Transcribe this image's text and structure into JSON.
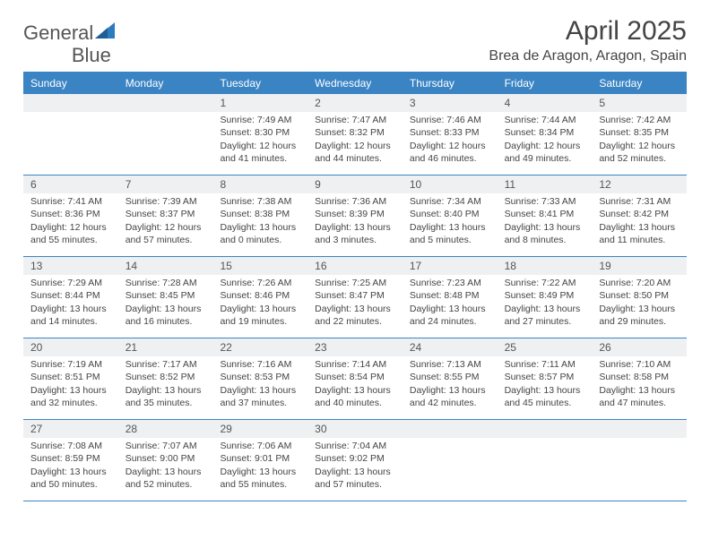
{
  "logo": {
    "text1": "General",
    "text2": "Blue"
  },
  "title": "April 2025",
  "location": "Brea de Aragon, Aragon, Spain",
  "colors": {
    "header_bg": "#3b84c4",
    "header_text": "#ffffff",
    "daynum_bg": "#eef0f1",
    "border": "#3b84c4",
    "body_text": "#444444",
    "logo_blue": "#2b7bbf",
    "logo_gray": "#555555"
  },
  "day_names": [
    "Sunday",
    "Monday",
    "Tuesday",
    "Wednesday",
    "Thursday",
    "Friday",
    "Saturday"
  ],
  "first_weekday": 2,
  "days": [
    {
      "n": 1,
      "sunrise": "7:49 AM",
      "sunset": "8:30 PM",
      "daylight": "12 hours and 41 minutes."
    },
    {
      "n": 2,
      "sunrise": "7:47 AM",
      "sunset": "8:32 PM",
      "daylight": "12 hours and 44 minutes."
    },
    {
      "n": 3,
      "sunrise": "7:46 AM",
      "sunset": "8:33 PM",
      "daylight": "12 hours and 46 minutes."
    },
    {
      "n": 4,
      "sunrise": "7:44 AM",
      "sunset": "8:34 PM",
      "daylight": "12 hours and 49 minutes."
    },
    {
      "n": 5,
      "sunrise": "7:42 AM",
      "sunset": "8:35 PM",
      "daylight": "12 hours and 52 minutes."
    },
    {
      "n": 6,
      "sunrise": "7:41 AM",
      "sunset": "8:36 PM",
      "daylight": "12 hours and 55 minutes."
    },
    {
      "n": 7,
      "sunrise": "7:39 AM",
      "sunset": "8:37 PM",
      "daylight": "12 hours and 57 minutes."
    },
    {
      "n": 8,
      "sunrise": "7:38 AM",
      "sunset": "8:38 PM",
      "daylight": "13 hours and 0 minutes."
    },
    {
      "n": 9,
      "sunrise": "7:36 AM",
      "sunset": "8:39 PM",
      "daylight": "13 hours and 3 minutes."
    },
    {
      "n": 10,
      "sunrise": "7:34 AM",
      "sunset": "8:40 PM",
      "daylight": "13 hours and 5 minutes."
    },
    {
      "n": 11,
      "sunrise": "7:33 AM",
      "sunset": "8:41 PM",
      "daylight": "13 hours and 8 minutes."
    },
    {
      "n": 12,
      "sunrise": "7:31 AM",
      "sunset": "8:42 PM",
      "daylight": "13 hours and 11 minutes."
    },
    {
      "n": 13,
      "sunrise": "7:29 AM",
      "sunset": "8:44 PM",
      "daylight": "13 hours and 14 minutes."
    },
    {
      "n": 14,
      "sunrise": "7:28 AM",
      "sunset": "8:45 PM",
      "daylight": "13 hours and 16 minutes."
    },
    {
      "n": 15,
      "sunrise": "7:26 AM",
      "sunset": "8:46 PM",
      "daylight": "13 hours and 19 minutes."
    },
    {
      "n": 16,
      "sunrise": "7:25 AM",
      "sunset": "8:47 PM",
      "daylight": "13 hours and 22 minutes."
    },
    {
      "n": 17,
      "sunrise": "7:23 AM",
      "sunset": "8:48 PM",
      "daylight": "13 hours and 24 minutes."
    },
    {
      "n": 18,
      "sunrise": "7:22 AM",
      "sunset": "8:49 PM",
      "daylight": "13 hours and 27 minutes."
    },
    {
      "n": 19,
      "sunrise": "7:20 AM",
      "sunset": "8:50 PM",
      "daylight": "13 hours and 29 minutes."
    },
    {
      "n": 20,
      "sunrise": "7:19 AM",
      "sunset": "8:51 PM",
      "daylight": "13 hours and 32 minutes."
    },
    {
      "n": 21,
      "sunrise": "7:17 AM",
      "sunset": "8:52 PM",
      "daylight": "13 hours and 35 minutes."
    },
    {
      "n": 22,
      "sunrise": "7:16 AM",
      "sunset": "8:53 PM",
      "daylight": "13 hours and 37 minutes."
    },
    {
      "n": 23,
      "sunrise": "7:14 AM",
      "sunset": "8:54 PM",
      "daylight": "13 hours and 40 minutes."
    },
    {
      "n": 24,
      "sunrise": "7:13 AM",
      "sunset": "8:55 PM",
      "daylight": "13 hours and 42 minutes."
    },
    {
      "n": 25,
      "sunrise": "7:11 AM",
      "sunset": "8:57 PM",
      "daylight": "13 hours and 45 minutes."
    },
    {
      "n": 26,
      "sunrise": "7:10 AM",
      "sunset": "8:58 PM",
      "daylight": "13 hours and 47 minutes."
    },
    {
      "n": 27,
      "sunrise": "7:08 AM",
      "sunset": "8:59 PM",
      "daylight": "13 hours and 50 minutes."
    },
    {
      "n": 28,
      "sunrise": "7:07 AM",
      "sunset": "9:00 PM",
      "daylight": "13 hours and 52 minutes."
    },
    {
      "n": 29,
      "sunrise": "7:06 AM",
      "sunset": "9:01 PM",
      "daylight": "13 hours and 55 minutes."
    },
    {
      "n": 30,
      "sunrise": "7:04 AM",
      "sunset": "9:02 PM",
      "daylight": "13 hours and 57 minutes."
    }
  ],
  "labels": {
    "sunrise": "Sunrise:",
    "sunset": "Sunset:",
    "daylight": "Daylight:"
  }
}
